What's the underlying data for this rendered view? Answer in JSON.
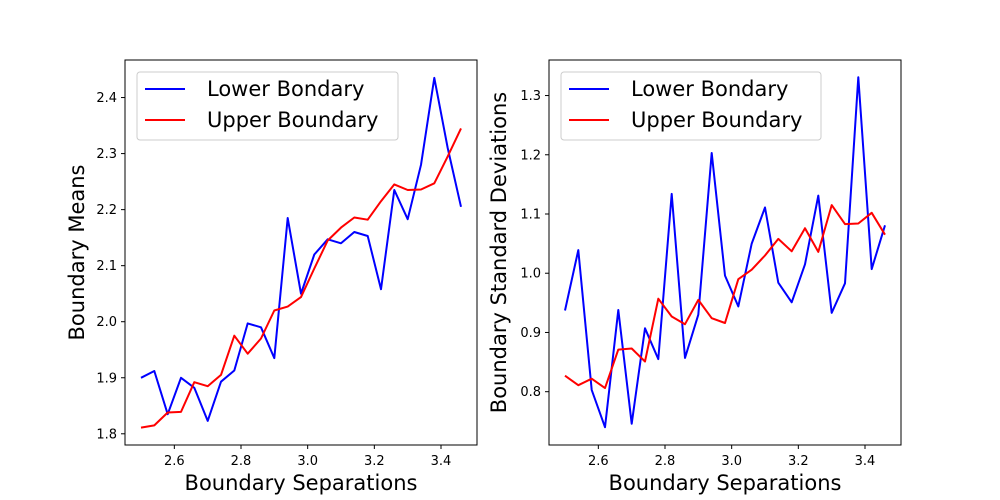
{
  "chart_data": [
    {
      "type": "line",
      "xlabel": "Boundary Separations",
      "ylabel": "Boundary Means",
      "xlim": [
        2.452,
        3.508
      ],
      "ylim": [
        1.78,
        2.467
      ],
      "xticks": [
        2.6,
        2.8,
        3.0,
        3.2,
        3.4
      ],
      "yticks": [
        1.8,
        1.9,
        2.0,
        2.1,
        2.2,
        2.3,
        2.4
      ],
      "legend": "upper-left",
      "x": [
        2.5,
        2.54,
        2.58,
        2.62,
        2.66,
        2.7,
        2.74,
        2.78,
        2.82,
        2.86,
        2.9,
        2.94,
        2.98,
        3.02,
        3.06,
        3.1,
        3.14,
        3.18,
        3.22,
        3.26,
        3.3,
        3.34,
        3.38,
        3.42,
        3.46
      ],
      "series": [
        {
          "name": "Lower Bondary",
          "color": "#0000ff",
          "values": [
            1.9,
            1.912,
            1.835,
            1.9,
            1.882,
            1.823,
            1.893,
            1.913,
            1.997,
            1.99,
            1.935,
            2.185,
            2.05,
            2.12,
            2.147,
            2.14,
            2.16,
            2.153,
            2.058,
            2.235,
            2.183,
            2.28,
            2.435,
            2.31,
            2.205
          ]
        },
        {
          "name": "Upper Boundary",
          "color": "#ff0000",
          "values": [
            1.811,
            1.815,
            1.838,
            1.839,
            1.892,
            1.885,
            1.905,
            1.975,
            1.943,
            1.97,
            2.02,
            2.027,
            2.044,
            2.095,
            2.145,
            2.168,
            2.186,
            2.182,
            2.215,
            2.245,
            2.235,
            2.236,
            2.247,
            2.295,
            2.345
          ]
        }
      ]
    },
    {
      "type": "line",
      "xlabel": "Boundary Separations",
      "ylabel": "Boundary Standard Deviations",
      "xlim": [
        2.452,
        3.508
      ],
      "ylim": [
        0.71,
        1.36
      ],
      "xticks": [
        2.6,
        2.8,
        3.0,
        3.2,
        3.4
      ],
      "yticks": [
        0.8,
        0.9,
        1.0,
        1.1,
        1.2,
        1.3
      ],
      "legend": "upper-left",
      "x": [
        2.5,
        2.54,
        2.58,
        2.62,
        2.66,
        2.7,
        2.74,
        2.78,
        2.82,
        2.86,
        2.9,
        2.94,
        2.98,
        3.02,
        3.06,
        3.1,
        3.14,
        3.18,
        3.22,
        3.26,
        3.3,
        3.34,
        3.38,
        3.42,
        3.46
      ],
      "series": [
        {
          "name": "Lower Bondary",
          "color": "#0000ff",
          "values": [
            0.937,
            1.039,
            0.803,
            0.74,
            0.938,
            0.746,
            0.907,
            0.855,
            1.134,
            0.857,
            0.93,
            1.203,
            0.996,
            0.944,
            1.05,
            1.111,
            0.984,
            0.951,
            1.015,
            1.131,
            0.933,
            0.983,
            1.331,
            1.007,
            1.081
          ]
        },
        {
          "name": "Upper Boundary",
          "color": "#ff0000",
          "values": [
            0.827,
            0.811,
            0.822,
            0.806,
            0.871,
            0.873,
            0.851,
            0.957,
            0.927,
            0.914,
            0.955,
            0.924,
            0.916,
            0.99,
            1.006,
            1.03,
            1.058,
            1.037,
            1.076,
            1.036,
            1.115,
            1.083,
            1.084,
            1.102,
            1.065
          ]
        }
      ]
    }
  ]
}
